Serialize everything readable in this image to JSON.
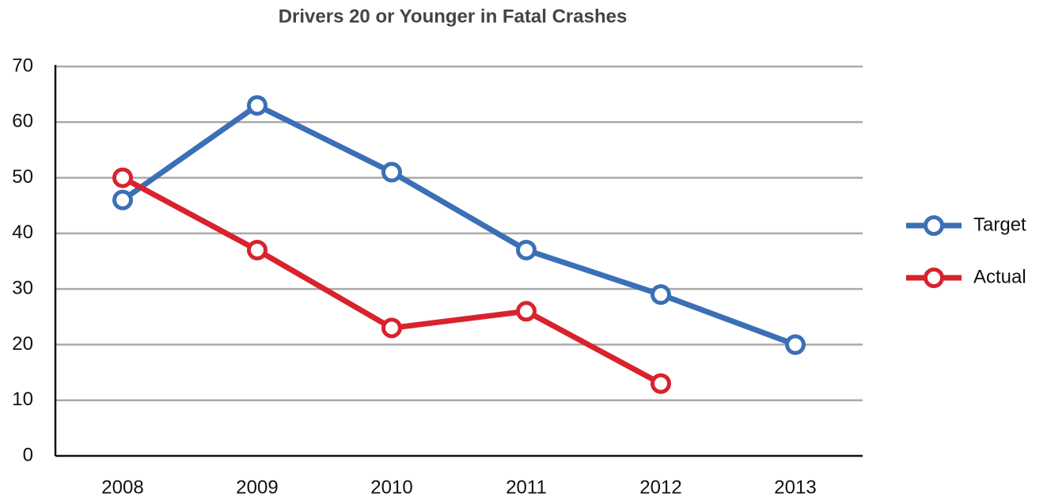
{
  "chart_data": {
    "type": "line",
    "title": "Drivers 20 or Younger in Fatal Crashes",
    "categories": [
      "2008",
      "2009",
      "2010",
      "2011",
      "2012",
      "2013"
    ],
    "series": [
      {
        "name": "Target",
        "color": "#3b6fb6",
        "values": [
          46,
          63,
          51,
          37,
          29,
          20
        ]
      },
      {
        "name": "Actual",
        "color": "#d8232d",
        "values": [
          50,
          37,
          23,
          26,
          13,
          null
        ]
      }
    ],
    "ylim": [
      0,
      70
    ],
    "yticks": [
      0,
      10,
      20,
      30,
      40,
      50,
      60,
      70
    ],
    "grid": true,
    "legend": "right"
  }
}
